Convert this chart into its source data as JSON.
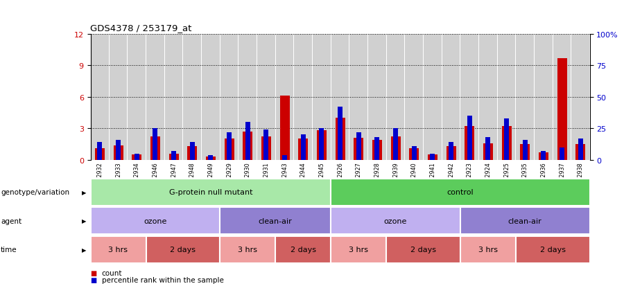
{
  "title": "GDS4378 / 253179_at",
  "samples": [
    "GSM852932",
    "GSM852933",
    "GSM852934",
    "GSM852946",
    "GSM852947",
    "GSM852948",
    "GSM852949",
    "GSM852929",
    "GSM852930",
    "GSM852931",
    "GSM852943",
    "GSM852944",
    "GSM852945",
    "GSM852926",
    "GSM852927",
    "GSM852928",
    "GSM852939",
    "GSM852940",
    "GSM852941",
    "GSM852942",
    "GSM852923",
    "GSM852924",
    "GSM852925",
    "GSM852935",
    "GSM852936",
    "GSM852937",
    "GSM852938"
  ],
  "count_values": [
    1.1,
    1.4,
    0.5,
    2.2,
    0.6,
    1.3,
    0.3,
    2.0,
    2.7,
    2.2,
    6.1,
    2.0,
    2.8,
    4.0,
    2.1,
    1.9,
    2.2,
    1.1,
    0.5,
    1.3,
    3.2,
    1.6,
    3.2,
    1.5,
    0.7,
    9.7,
    1.5
  ],
  "percentile_values": [
    14,
    16,
    5,
    25,
    7,
    14,
    4,
    22,
    30,
    24,
    4,
    20,
    25,
    42,
    22,
    18,
    25,
    11,
    5,
    14,
    35,
    18,
    33,
    16,
    7,
    10,
    17
  ],
  "count_color": "#cc0000",
  "percentile_color": "#0000cc",
  "ylim_left": [
    0,
    12
  ],
  "ylim_right": [
    0,
    100
  ],
  "yticks_left": [
    0,
    3,
    6,
    9,
    12
  ],
  "yticks_right": [
    0,
    25,
    50,
    75,
    100
  ],
  "ytick_labels_right": [
    "0",
    "25",
    "50",
    "75",
    "100%"
  ],
  "background_color": "#ffffff",
  "plot_bg": "#ffffff",
  "bar_bg": "#d0d0d0",
  "genotype_groups": [
    {
      "label": "G-protein null mutant",
      "start": 0,
      "end": 13,
      "color": "#a8e8a8"
    },
    {
      "label": "control",
      "start": 13,
      "end": 27,
      "color": "#5ccc5c"
    }
  ],
  "agent_groups": [
    {
      "label": "ozone",
      "start": 0,
      "end": 7,
      "color": "#c0b0f0"
    },
    {
      "label": "clean-air",
      "start": 7,
      "end": 13,
      "color": "#9080d0"
    },
    {
      "label": "ozone",
      "start": 13,
      "end": 20,
      "color": "#c0b0f0"
    },
    {
      "label": "clean-air",
      "start": 20,
      "end": 27,
      "color": "#9080d0"
    }
  ],
  "time_groups": [
    {
      "label": "3 hrs",
      "start": 0,
      "end": 3,
      "color": "#f0a0a0"
    },
    {
      "label": "2 days",
      "start": 3,
      "end": 7,
      "color": "#d06060"
    },
    {
      "label": "3 hrs",
      "start": 7,
      "end": 10,
      "color": "#f0a0a0"
    },
    {
      "label": "2 days",
      "start": 10,
      "end": 13,
      "color": "#d06060"
    },
    {
      "label": "3 hrs",
      "start": 13,
      "end": 16,
      "color": "#f0a0a0"
    },
    {
      "label": "2 days",
      "start": 16,
      "end": 20,
      "color": "#d06060"
    },
    {
      "label": "3 hrs",
      "start": 20,
      "end": 23,
      "color": "#f0a0a0"
    },
    {
      "label": "2 days",
      "start": 23,
      "end": 27,
      "color": "#d06060"
    }
  ],
  "row_labels": [
    "genotype/variation",
    "agent",
    "time"
  ],
  "legend_items": [
    {
      "label": "count",
      "color": "#cc0000"
    },
    {
      "label": "percentile rank within the sample",
      "color": "#0000cc"
    }
  ]
}
